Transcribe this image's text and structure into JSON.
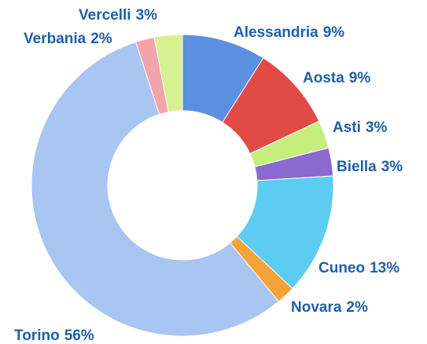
{
  "chart_data": {
    "type": "donut",
    "categories": [
      "Alessandria",
      "Aosta",
      "Asti",
      "Biella",
      "Cuneo",
      "Novara",
      "Torino",
      "Verbania",
      "Vercelli"
    ],
    "values": [
      9,
      9,
      3,
      3,
      13,
      2,
      56,
      2,
      3
    ],
    "value_labels": [
      "9%",
      "9%",
      "3%",
      "3%",
      "13%",
      "2%",
      "56%",
      "2%",
      "3%"
    ],
    "colors": [
      "#5b8fe0",
      "#e24a46",
      "#c6ee7c",
      "#8a6ad0",
      "#5ccdf0",
      "#f5a338",
      "#a9c5f2",
      "#f2a3ab",
      "#d6f092"
    ]
  }
}
